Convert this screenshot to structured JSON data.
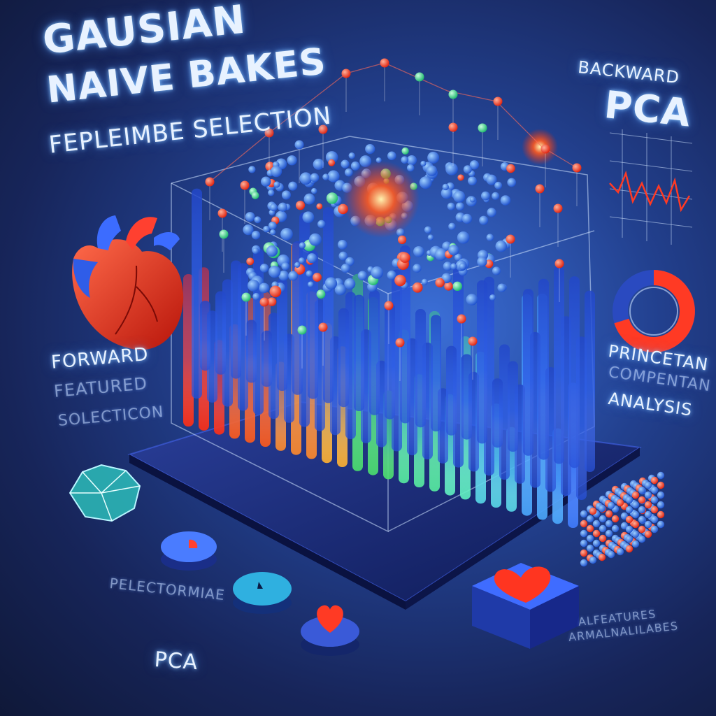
{
  "title": {
    "line1": "GAUSIAN",
    "line2": "NAIVE BAKES",
    "line3": "FEPLEIMBE SELECTION"
  },
  "right_panel": {
    "small": "BACKWARD",
    "big": "PCA"
  },
  "left_labels": [
    "FORWARD",
    "FEATURED",
    "SOLECTICON"
  ],
  "right_labels": [
    "PRINCETAN",
    "COMPENTAN",
    "ANALYSIS"
  ],
  "bottom_left": {
    "small": "PELECTORMIAE",
    "big": "PCA"
  },
  "bottom_right": [
    "ALFEATURES",
    "ARMALNALILABES"
  ],
  "icons": {
    "heart": "anatomical-heart-icon",
    "ring": "ring-chart-icon",
    "mini_chart": "mini-line-chart-icon",
    "cube": "particle-cube-icon",
    "crystal": "crystal-shape-icon",
    "block": "heart-block-icon"
  },
  "colors": {
    "background": "#1b2a63",
    "accent_red": "#ff3b2a",
    "accent_blue": "#3c8cff",
    "accent_green": "#5ef0a0"
  }
}
